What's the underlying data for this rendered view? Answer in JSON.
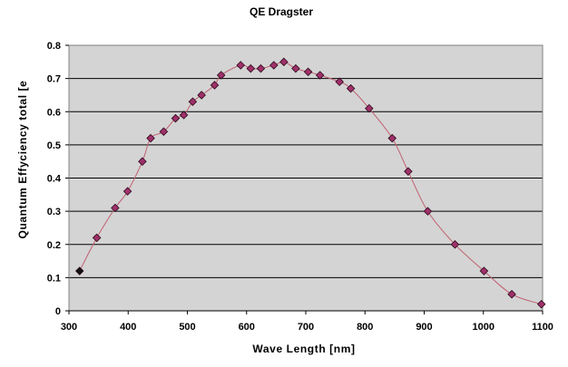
{
  "chart_data": {
    "type": "scatter",
    "title": "QE Dragster",
    "xlabel": "Wave Length [nm]",
    "ylabel": "Quantum Effyciency total [e",
    "xlim": [
      300,
      1100
    ],
    "ylim": [
      0,
      0.8
    ],
    "x_ticks": [
      300,
      400,
      500,
      600,
      700,
      800,
      900,
      1000,
      1100
    ],
    "y_ticks": [
      0,
      0.1,
      0.2,
      0.3,
      0.4,
      0.5,
      0.6,
      0.7,
      0.8
    ],
    "x_tick_labels": [
      "300",
      "400",
      "500",
      "600",
      "700",
      "800",
      "900",
      "1000",
      "1100"
    ],
    "y_tick_labels": [
      "0",
      "0.1",
      "0.2",
      "0.3",
      "0.4",
      "0.5",
      "0.6",
      "0.7",
      "0.8"
    ],
    "grid": "horizontal",
    "plot_background": "#d4d4d4",
    "line_color": "#c06070",
    "marker_color": "#a0306a",
    "first_marker_color": "#111111",
    "series": [
      {
        "x": [
          318,
          347,
          378,
          399,
          424,
          438,
          460,
          480,
          494,
          509,
          524,
          546,
          557,
          590,
          607,
          624,
          646,
          663,
          683,
          704,
          724,
          757,
          776,
          807,
          846,
          873,
          906,
          952,
          1001,
          1048,
          1098
        ],
        "y": [
          0.12,
          0.22,
          0.31,
          0.36,
          0.45,
          0.52,
          0.54,
          0.58,
          0.59,
          0.63,
          0.65,
          0.68,
          0.71,
          0.74,
          0.73,
          0.73,
          0.74,
          0.75,
          0.73,
          0.72,
          0.71,
          0.69,
          0.67,
          0.61,
          0.52,
          0.42,
          0.3,
          0.2,
          0.12,
          0.05,
          0.02
        ]
      }
    ]
  }
}
